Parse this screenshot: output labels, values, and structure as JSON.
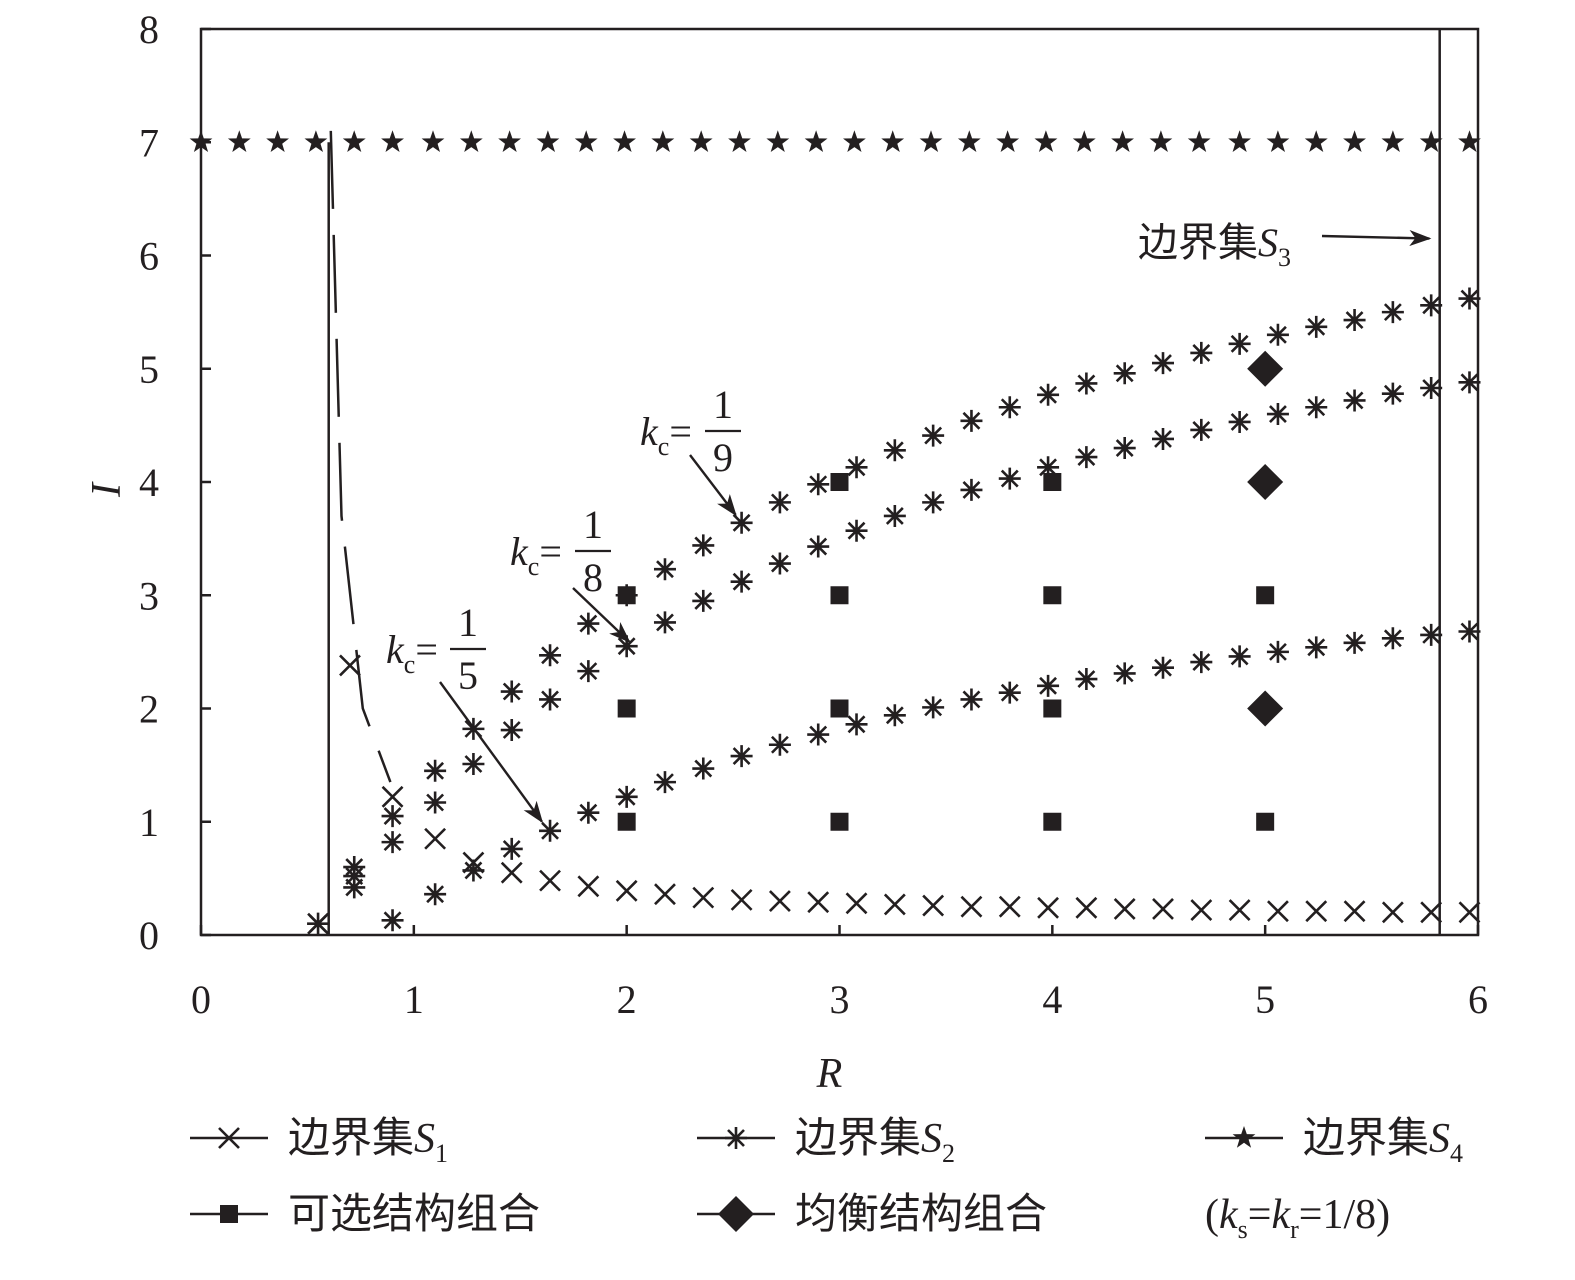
{
  "chart_data": {
    "type": "scatter",
    "xlabel": "R",
    "ylabel": "I",
    "xlim": [
      0,
      6
    ],
    "ylim": [
      0,
      8
    ],
    "xticks": [
      "0",
      "1",
      "2",
      "3",
      "4",
      "5",
      "6"
    ],
    "yticks": [
      "0",
      "1",
      "2",
      "3",
      "4",
      "5",
      "6",
      "7",
      "8"
    ],
    "grid": false,
    "legend_position": "bottom",
    "series": [
      {
        "name": "边界集S1",
        "label_base": "边界集",
        "label_var": "S",
        "label_sub": "1",
        "marker": "x",
        "color": "#231f20",
        "points": [
          [
            0.55,
            0.1
          ],
          [
            0.7,
            2.38
          ],
          [
            0.9,
            1.22
          ],
          [
            1.1,
            0.85
          ],
          [
            1.28,
            0.64
          ],
          [
            1.46,
            0.55
          ],
          [
            1.64,
            0.48
          ],
          [
            1.82,
            0.43
          ],
          [
            2.0,
            0.39
          ],
          [
            2.18,
            0.36
          ],
          [
            2.36,
            0.33
          ],
          [
            2.54,
            0.31
          ],
          [
            2.72,
            0.3
          ],
          [
            2.9,
            0.29
          ],
          [
            3.08,
            0.28
          ],
          [
            3.26,
            0.27
          ],
          [
            3.44,
            0.26
          ],
          [
            3.62,
            0.25
          ],
          [
            3.8,
            0.25
          ],
          [
            3.98,
            0.24
          ],
          [
            4.16,
            0.24
          ],
          [
            4.34,
            0.23
          ],
          [
            4.52,
            0.23
          ],
          [
            4.7,
            0.22
          ],
          [
            4.88,
            0.22
          ],
          [
            5.06,
            0.21
          ],
          [
            5.24,
            0.21
          ],
          [
            5.42,
            0.21
          ],
          [
            5.6,
            0.2
          ],
          [
            5.78,
            0.2
          ],
          [
            5.96,
            0.2
          ]
        ],
        "line_points": [
          [
            0.61,
            7.1
          ],
          [
            0.66,
            3.7
          ],
          [
            0.76,
            2.0
          ],
          [
            0.89,
            1.35
          ]
        ],
        "line_dash": "78 26"
      },
      {
        "name": "边界集S2 (kc=1/5)",
        "label_base": "边界集",
        "label_var": "S",
        "label_sub": "2",
        "marker": "asterisk",
        "color": "#231f20",
        "points": [
          [
            0.55,
            0.1
          ],
          [
            0.72,
            0.42
          ],
          [
            0.9,
            0.13
          ],
          [
            1.1,
            0.36
          ],
          [
            1.28,
            0.57
          ],
          [
            1.46,
            0.76
          ],
          [
            1.64,
            0.92
          ],
          [
            1.82,
            1.08
          ],
          [
            2.0,
            1.22
          ],
          [
            2.18,
            1.35
          ],
          [
            2.36,
            1.47
          ],
          [
            2.54,
            1.58
          ],
          [
            2.72,
            1.68
          ],
          [
            2.9,
            1.77
          ],
          [
            3.08,
            1.86
          ],
          [
            3.26,
            1.94
          ],
          [
            3.44,
            2.01
          ],
          [
            3.62,
            2.08
          ],
          [
            3.8,
            2.14
          ],
          [
            3.98,
            2.2
          ],
          [
            4.16,
            2.26
          ],
          [
            4.34,
            2.31
          ],
          [
            4.52,
            2.36
          ],
          [
            4.7,
            2.41
          ],
          [
            4.88,
            2.46
          ],
          [
            5.06,
            2.5
          ],
          [
            5.24,
            2.54
          ],
          [
            5.42,
            2.58
          ],
          [
            5.6,
            2.62
          ],
          [
            5.78,
            2.65
          ],
          [
            5.96,
            2.68
          ]
        ]
      },
      {
        "name": "边界集S2 (kc=1/8)",
        "label_base": "边界集",
        "label_var": "S",
        "label_sub": "2",
        "marker": "asterisk",
        "color": "#231f20",
        "points": [
          [
            0.72,
            0.52
          ],
          [
            0.9,
            0.82
          ],
          [
            1.1,
            1.17
          ],
          [
            1.28,
            1.51
          ],
          [
            1.46,
            1.81
          ],
          [
            1.64,
            2.08
          ],
          [
            1.82,
            2.33
          ],
          [
            2.0,
            2.55
          ],
          [
            2.18,
            2.76
          ],
          [
            2.36,
            2.95
          ],
          [
            2.54,
            3.12
          ],
          [
            2.72,
            3.28
          ],
          [
            2.9,
            3.43
          ],
          [
            3.08,
            3.57
          ],
          [
            3.26,
            3.7
          ],
          [
            3.44,
            3.82
          ],
          [
            3.62,
            3.93
          ],
          [
            3.8,
            4.03
          ],
          [
            3.98,
            4.13
          ],
          [
            4.16,
            4.22
          ],
          [
            4.34,
            4.3
          ],
          [
            4.52,
            4.38
          ],
          [
            4.7,
            4.46
          ],
          [
            4.88,
            4.53
          ],
          [
            5.06,
            4.6
          ],
          [
            5.24,
            4.66
          ],
          [
            5.42,
            4.72
          ],
          [
            5.6,
            4.78
          ],
          [
            5.78,
            4.83
          ],
          [
            5.96,
            4.88
          ]
        ]
      },
      {
        "name": "边界集S2 (kc=1/9)",
        "label_base": "边界集",
        "label_var": "S",
        "label_sub": "2",
        "marker": "asterisk",
        "color": "#231f20",
        "points": [
          [
            0.72,
            0.6
          ],
          [
            0.9,
            1.05
          ],
          [
            1.1,
            1.45
          ],
          [
            1.28,
            1.82
          ],
          [
            1.46,
            2.15
          ],
          [
            1.64,
            2.47
          ],
          [
            1.82,
            2.75
          ],
          [
            2.0,
            3.0
          ],
          [
            2.18,
            3.23
          ],
          [
            2.36,
            3.44
          ],
          [
            2.54,
            3.64
          ],
          [
            2.72,
            3.82
          ],
          [
            2.9,
            3.98
          ],
          [
            3.08,
            4.13
          ],
          [
            3.26,
            4.28
          ],
          [
            3.44,
            4.41
          ],
          [
            3.62,
            4.54
          ],
          [
            3.8,
            4.66
          ],
          [
            3.98,
            4.77
          ],
          [
            4.16,
            4.87
          ],
          [
            4.34,
            4.96
          ],
          [
            4.52,
            5.05
          ],
          [
            4.7,
            5.14
          ],
          [
            4.88,
            5.22
          ],
          [
            5.06,
            5.3
          ],
          [
            5.24,
            5.37
          ],
          [
            5.42,
            5.43
          ],
          [
            5.6,
            5.5
          ],
          [
            5.78,
            5.56
          ],
          [
            5.96,
            5.62
          ]
        ]
      },
      {
        "name": "边界集S4",
        "label_base": "边界集",
        "label_var": "S",
        "label_sub": "4",
        "marker": "star",
        "color": "#231f20",
        "points": [
          [
            0.0,
            7
          ],
          [
            0.18,
            7
          ],
          [
            0.36,
            7
          ],
          [
            0.54,
            7
          ],
          [
            0.72,
            7
          ],
          [
            0.9,
            7
          ],
          [
            1.09,
            7
          ],
          [
            1.27,
            7
          ],
          [
            1.45,
            7
          ],
          [
            1.63,
            7
          ],
          [
            1.81,
            7
          ],
          [
            1.99,
            7
          ],
          [
            2.17,
            7
          ],
          [
            2.35,
            7
          ],
          [
            2.53,
            7
          ],
          [
            2.71,
            7
          ],
          [
            2.89,
            7
          ],
          [
            3.07,
            7
          ],
          [
            3.25,
            7
          ],
          [
            3.43,
            7
          ],
          [
            3.61,
            7
          ],
          [
            3.79,
            7
          ],
          [
            3.97,
            7
          ],
          [
            4.15,
            7
          ],
          [
            4.33,
            7
          ],
          [
            4.51,
            7
          ],
          [
            4.69,
            7
          ],
          [
            4.88,
            7
          ],
          [
            5.06,
            7
          ],
          [
            5.24,
            7
          ],
          [
            5.42,
            7
          ],
          [
            5.6,
            7
          ],
          [
            5.78,
            7
          ],
          [
            5.96,
            7
          ]
        ]
      },
      {
        "name": "可选结构组合",
        "label_base": "可选结构组合",
        "marker": "square",
        "color": "#231f20",
        "points": [
          [
            2,
            1
          ],
          [
            2,
            2
          ],
          [
            2,
            3
          ],
          [
            3,
            1
          ],
          [
            3,
            2
          ],
          [
            3,
            3
          ],
          [
            3,
            4
          ],
          [
            4,
            1
          ],
          [
            4,
            2
          ],
          [
            4,
            3
          ],
          [
            4,
            4
          ],
          [
            5,
            1
          ],
          [
            5,
            3
          ]
        ]
      },
      {
        "name": "均衡结构组合",
        "label_base": "均衡结构组合",
        "marker": "diamond",
        "color": "#231f20",
        "points": [
          [
            5,
            2
          ],
          [
            5,
            4
          ],
          [
            5,
            5
          ]
        ]
      }
    ],
    "vertical_lines": [
      {
        "name": "left boundary",
        "x": 0.6,
        "y0": 0,
        "y1": 7
      },
      {
        "name": "边界集S3",
        "x": 5.82,
        "y0": 0,
        "y1": 8
      }
    ],
    "annotations": [
      {
        "k": "k",
        "sub": "c",
        "num": "1",
        "den": "5",
        "arrow_to": [
          1.63,
          0.93
        ]
      },
      {
        "k": "k",
        "sub": "c",
        "num": "1",
        "den": "8",
        "arrow_to": [
          2.04,
          2.52
        ]
      },
      {
        "k": "k",
        "sub": "c",
        "num": "1",
        "den": "9",
        "arrow_to": [
          2.54,
          3.64
        ]
      }
    ],
    "s3_label": {
      "base": "边界集",
      "var": "S",
      "sub": "3",
      "arrow_to": [
        5.8,
        6.15
      ]
    },
    "legend_entries": [
      {
        "base": "边界集",
        "var": "S",
        "sub": "1",
        "marker": "x"
      },
      {
        "base": "边界集",
        "var": "S",
        "sub": "2",
        "marker": "asterisk"
      },
      {
        "base": "边界集",
        "var": "S",
        "sub": "4",
        "marker": "star"
      },
      {
        "base": "可选结构组合",
        "marker": "square"
      },
      {
        "base": "均衡结构组合",
        "marker": "diamond"
      }
    ],
    "params_note": {
      "open": "(",
      "k1": "k",
      "k1_sub": "s",
      "eq1": "=",
      "k2": "k",
      "k2_sub": "r",
      "eq2": "=1/8)"
    }
  }
}
